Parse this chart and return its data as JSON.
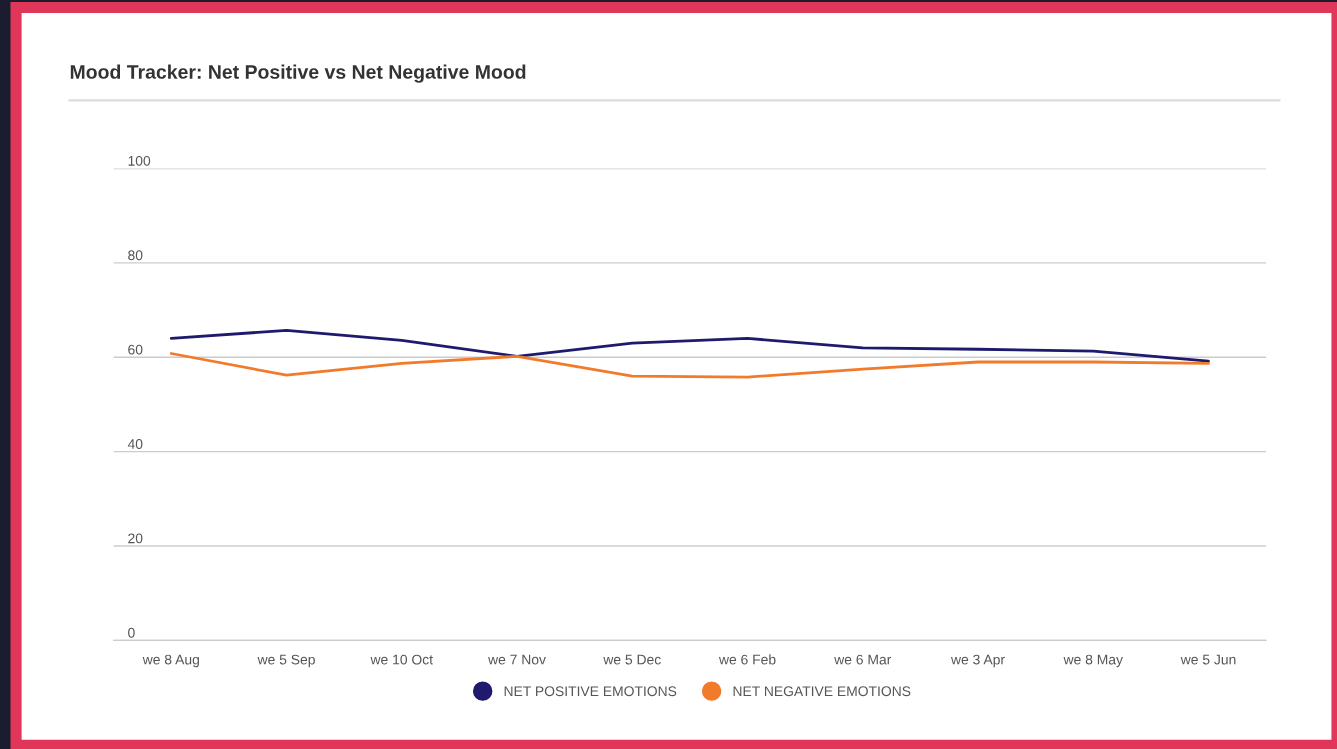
{
  "chart_data": {
    "type": "line",
    "title": "Mood Tracker: Net Positive vs Net Negative Mood",
    "categories": [
      "we 8 Aug",
      "we 5 Sep",
      "we 10 Oct",
      "we 7 Nov",
      "we 5 Dec",
      "we 6 Feb",
      "we 6 Mar",
      "we 3 Apr",
      "we 8 May",
      "we 5 Jun"
    ],
    "series": [
      {
        "name": "NET POSITIVE EMOTIONS",
        "color": "#1f1a6e",
        "values": [
          64,
          65.7,
          63.6,
          60.2,
          63,
          64,
          62,
          61.7,
          61.3,
          59.2
        ]
      },
      {
        "name": "NET NEGATIVE EMOTIONS",
        "color": "#f27b2b",
        "values": [
          60.8,
          56.2,
          58.7,
          60.2,
          56,
          55.8,
          57.5,
          59,
          59,
          58.7
        ]
      }
    ],
    "ylim": [
      0,
      100
    ],
    "yticks": [
      0,
      20,
      40,
      60,
      80,
      100
    ],
    "grid": "y",
    "legend": "bottom",
    "marker": "none",
    "line_style": "solid"
  }
}
